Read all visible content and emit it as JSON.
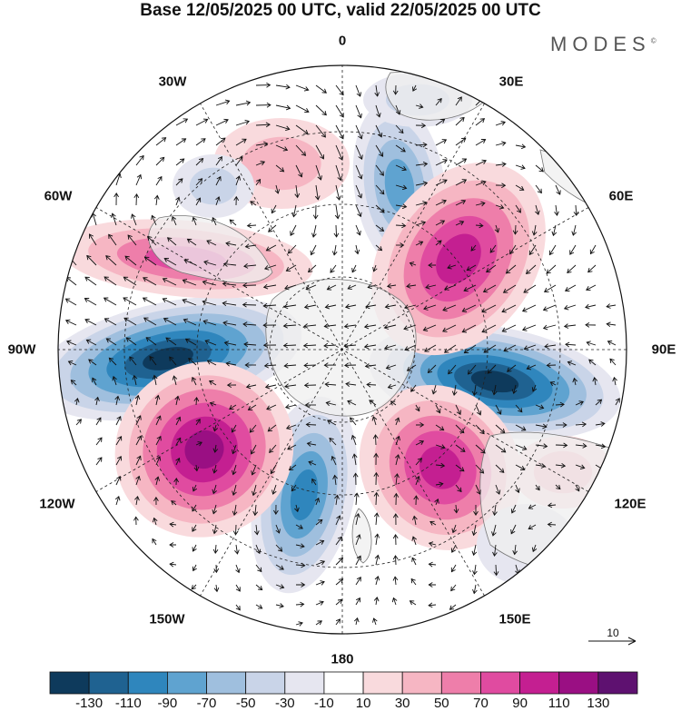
{
  "title": "Base 12/05/2025 00 UTC, valid 22/05/2025 00 UTC",
  "brand": "MODES",
  "brand_mark": "©",
  "longitude_labels": {
    "lon_0": "0",
    "lon_30e": "30E",
    "lon_60e": "60E",
    "lon_90e": "90E",
    "lon_120e": "120E",
    "lon_150e": "150E",
    "lon_180": "180",
    "lon_150w": "150W",
    "lon_120w": "120W",
    "lon_90w": "90W",
    "lon_60w": "60W",
    "lon_30w": "30W"
  },
  "reference_vector": {
    "label": "10"
  },
  "colorbar": {
    "colors": [
      "#0e3a5c",
      "#1f6291",
      "#2f86bd",
      "#5fa3d0",
      "#9fbfde",
      "#c9d4e8",
      "#e6e6f0",
      "#ffffff",
      "#f9dadd",
      "#f6b6c3",
      "#ee7eaa",
      "#e04ba0",
      "#c41f91",
      "#9a0f83",
      "#5e1170"
    ],
    "ticks": [
      "-130",
      "-110",
      "-90",
      "-70",
      "-50",
      "-30",
      "-10",
      "10",
      "30",
      "50",
      "70",
      "90",
      "110",
      "130"
    ]
  },
  "map_style": {
    "projection": "south-polar-stereographic",
    "land_color": "#efefef",
    "coast_color": "#777777",
    "grid_style": "dashed",
    "vector_color": "#111111"
  }
}
